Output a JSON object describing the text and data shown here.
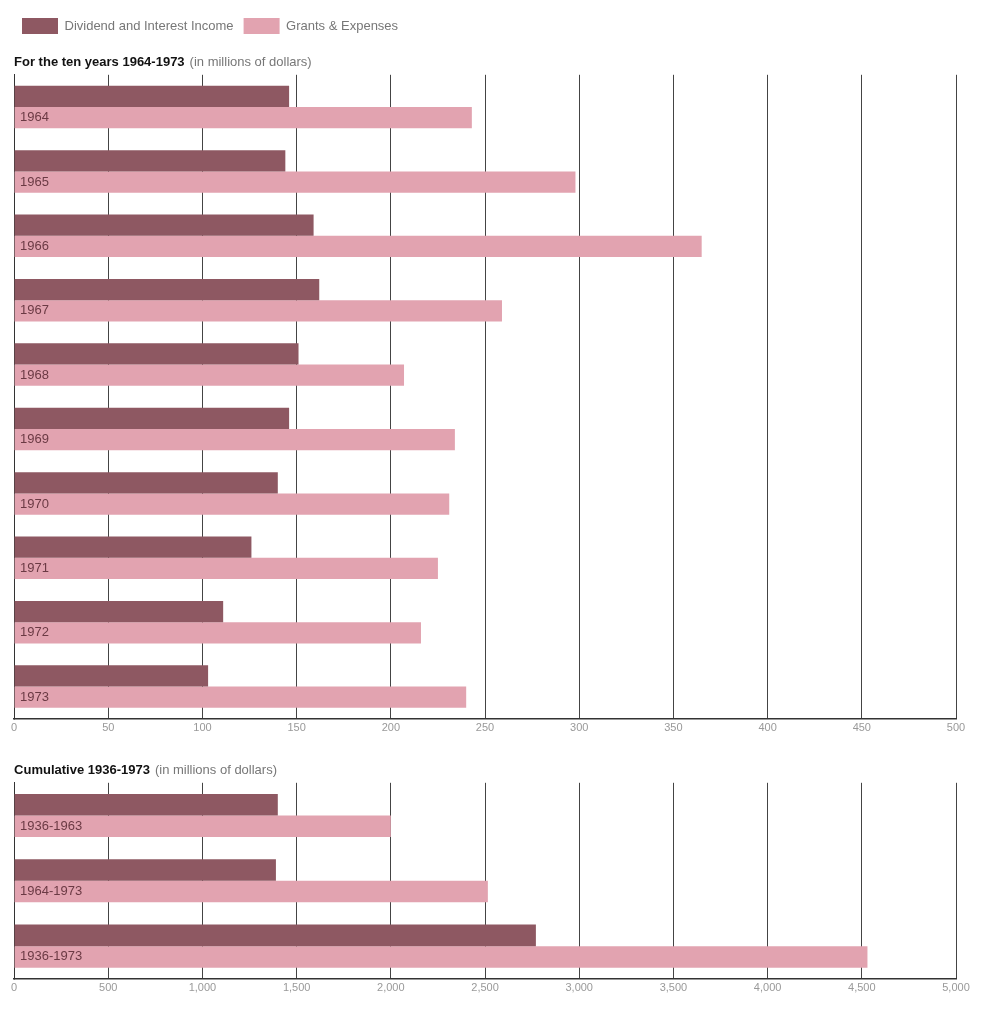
{
  "chart_data": [
    {
      "type": "bar",
      "orientation": "horizontal",
      "title": "For the ten years 1964-1973",
      "subtitle": "(in millions of dollars)",
      "legend": "top left",
      "grid": "x",
      "categories": [
        "1964",
        "1965",
        "1966",
        "1967",
        "1968",
        "1969",
        "1970",
        "1971",
        "1972",
        "1973"
      ],
      "series": [
        {
          "name": "Dividend and Interest Income",
          "color": "#8e5862",
          "values": [
            146,
            144,
            159,
            162,
            151,
            146,
            140,
            126,
            111,
            103
          ]
        },
        {
          "name": "Grants & Expenses",
          "color": "#e2a3b0",
          "values": [
            243,
            298,
            365,
            259,
            207,
            234,
            231,
            225,
            216,
            240
          ]
        }
      ],
      "xlim": [
        0,
        500
      ],
      "xticks": [
        0,
        50,
        100,
        150,
        200,
        250,
        300,
        350,
        400,
        450,
        500
      ]
    },
    {
      "type": "bar",
      "orientation": "horizontal",
      "title": "Cumulative 1936-1973",
      "subtitle": "(in millions of dollars)",
      "grid": "x",
      "categories": [
        "1936-1963",
        "1964-1973",
        "1936-1973"
      ],
      "series": [
        {
          "color": "#8e5862",
          "values": [
            1400,
            1390,
            2770
          ]
        },
        {
          "color": "#e2a3b0",
          "values": [
            2000,
            2515,
            4530
          ]
        }
      ],
      "xlim": [
        0,
        5000
      ],
      "xticks": [
        0,
        500,
        {
          "value": 1000,
          "label": "1,000"
        },
        {
          "value": 1500,
          "label": "1,500"
        },
        {
          "value": 2000,
          "label": "2,000"
        },
        {
          "value": 2500,
          "label": "2,500"
        },
        {
          "value": 3000,
          "label": "3,000"
        },
        {
          "value": 3500,
          "label": "3,500"
        },
        {
          "value": 4000,
          "label": "4,000"
        },
        {
          "value": 4500,
          "label": "4,500"
        },
        {
          "value": 5000,
          "label": "5,000"
        }
      ]
    }
  ]
}
